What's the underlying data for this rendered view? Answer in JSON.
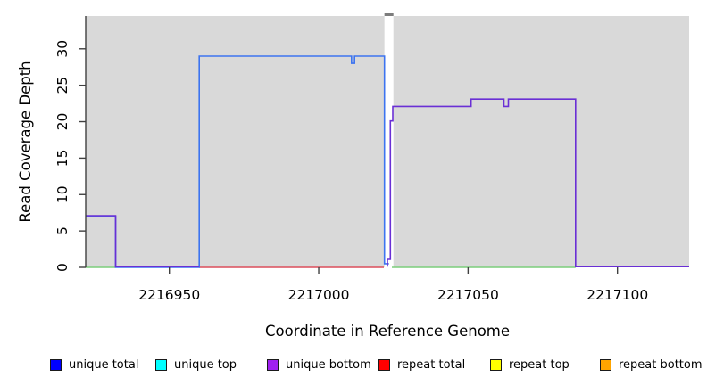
{
  "figure": {
    "x_axis_title": "Coordinate in Reference Genome",
    "y_axis_title": "Read Coverage Depth",
    "x_ticks": [
      "2216950",
      "2217000",
      "2217050",
      "2217100"
    ],
    "y_ticks": [
      "0",
      "5",
      "10",
      "15",
      "20",
      "25",
      "30"
    ]
  },
  "chart_data": {
    "type": "line",
    "title": "",
    "xlabel": "Coordinate in Reference Genome",
    "ylabel": "Read Coverage Depth",
    "x_range": [
      2216922,
      2217124
    ],
    "y_range": [
      0,
      34.5
    ],
    "x_tick_values": [
      2216950,
      2217000,
      2217050,
      2217100
    ],
    "y_tick_values": [
      0,
      5,
      10,
      15,
      20,
      25,
      30
    ],
    "panel_background": "#d9d9d9",
    "gap_region": {
      "x_start": 2217022,
      "x_end": 2217025,
      "marker_color": "#7d7d7d"
    },
    "series": [
      {
        "name": "baseline",
        "color": "#7ccd7c",
        "dy": 0,
        "points": [
          [
            2216922,
            0
          ],
          [
            2216932,
            0
          ]
        ]
      },
      {
        "name": "baseline",
        "color": "#7ccd7c",
        "dy": 0,
        "points": [
          [
            2217024.5,
            0
          ],
          [
            2217086,
            0
          ]
        ]
      },
      {
        "name": "repeat total",
        "color": "#dc4f5c",
        "dy": 0,
        "points": [
          [
            2216960,
            0
          ],
          [
            2217021.8,
            0
          ]
        ]
      },
      {
        "name": "unique total",
        "color": "#3d74f0",
        "dy": 0,
        "points": [
          [
            2216922,
            7
          ],
          [
            2216932,
            7
          ],
          [
            2216932,
            0
          ],
          [
            2216960,
            0
          ],
          [
            2216960,
            29
          ],
          [
            2217011,
            29
          ],
          [
            2217011,
            28
          ],
          [
            2217012,
            28
          ],
          [
            2217012,
            29
          ],
          [
            2217022,
            29
          ],
          [
            2217022,
            0.5
          ],
          [
            2217023.5,
            0.5
          ]
        ]
      },
      {
        "name": "unique bottom",
        "color": "#6a2fd5",
        "dy": -0.8,
        "points": [
          [
            2216922,
            7
          ],
          [
            2216932,
            7
          ],
          [
            2216932,
            0
          ],
          [
            2216960,
            0
          ]
        ]
      },
      {
        "name": "unique bottom",
        "color": "#6a2fd5",
        "dy": -0.8,
        "points": [
          [
            2217023,
            0
          ],
          [
            2217023,
            1
          ],
          [
            2217024,
            1
          ],
          [
            2217024,
            20
          ],
          [
            2217024.8,
            20
          ],
          [
            2217024.8,
            22
          ],
          [
            2217051,
            22
          ],
          [
            2217051,
            23
          ],
          [
            2217062,
            23
          ],
          [
            2217062,
            22
          ],
          [
            2217063.5,
            22
          ],
          [
            2217063.5,
            23
          ],
          [
            2217086,
            23
          ],
          [
            2217086,
            0
          ],
          [
            2217124,
            0
          ]
        ]
      }
    ]
  },
  "legend": {
    "items": [
      {
        "label": "unique total",
        "color": "#0000ff"
      },
      {
        "label": "unique top",
        "color": "#00ffff"
      },
      {
        "label": "unique bottom",
        "color": "#a020f0"
      },
      {
        "label": "repeat total",
        "color": "#ff0000"
      },
      {
        "label": "repeat top",
        "color": "#ffff00"
      },
      {
        "label": "repeat bottom",
        "color": "#ffa500"
      }
    ]
  }
}
